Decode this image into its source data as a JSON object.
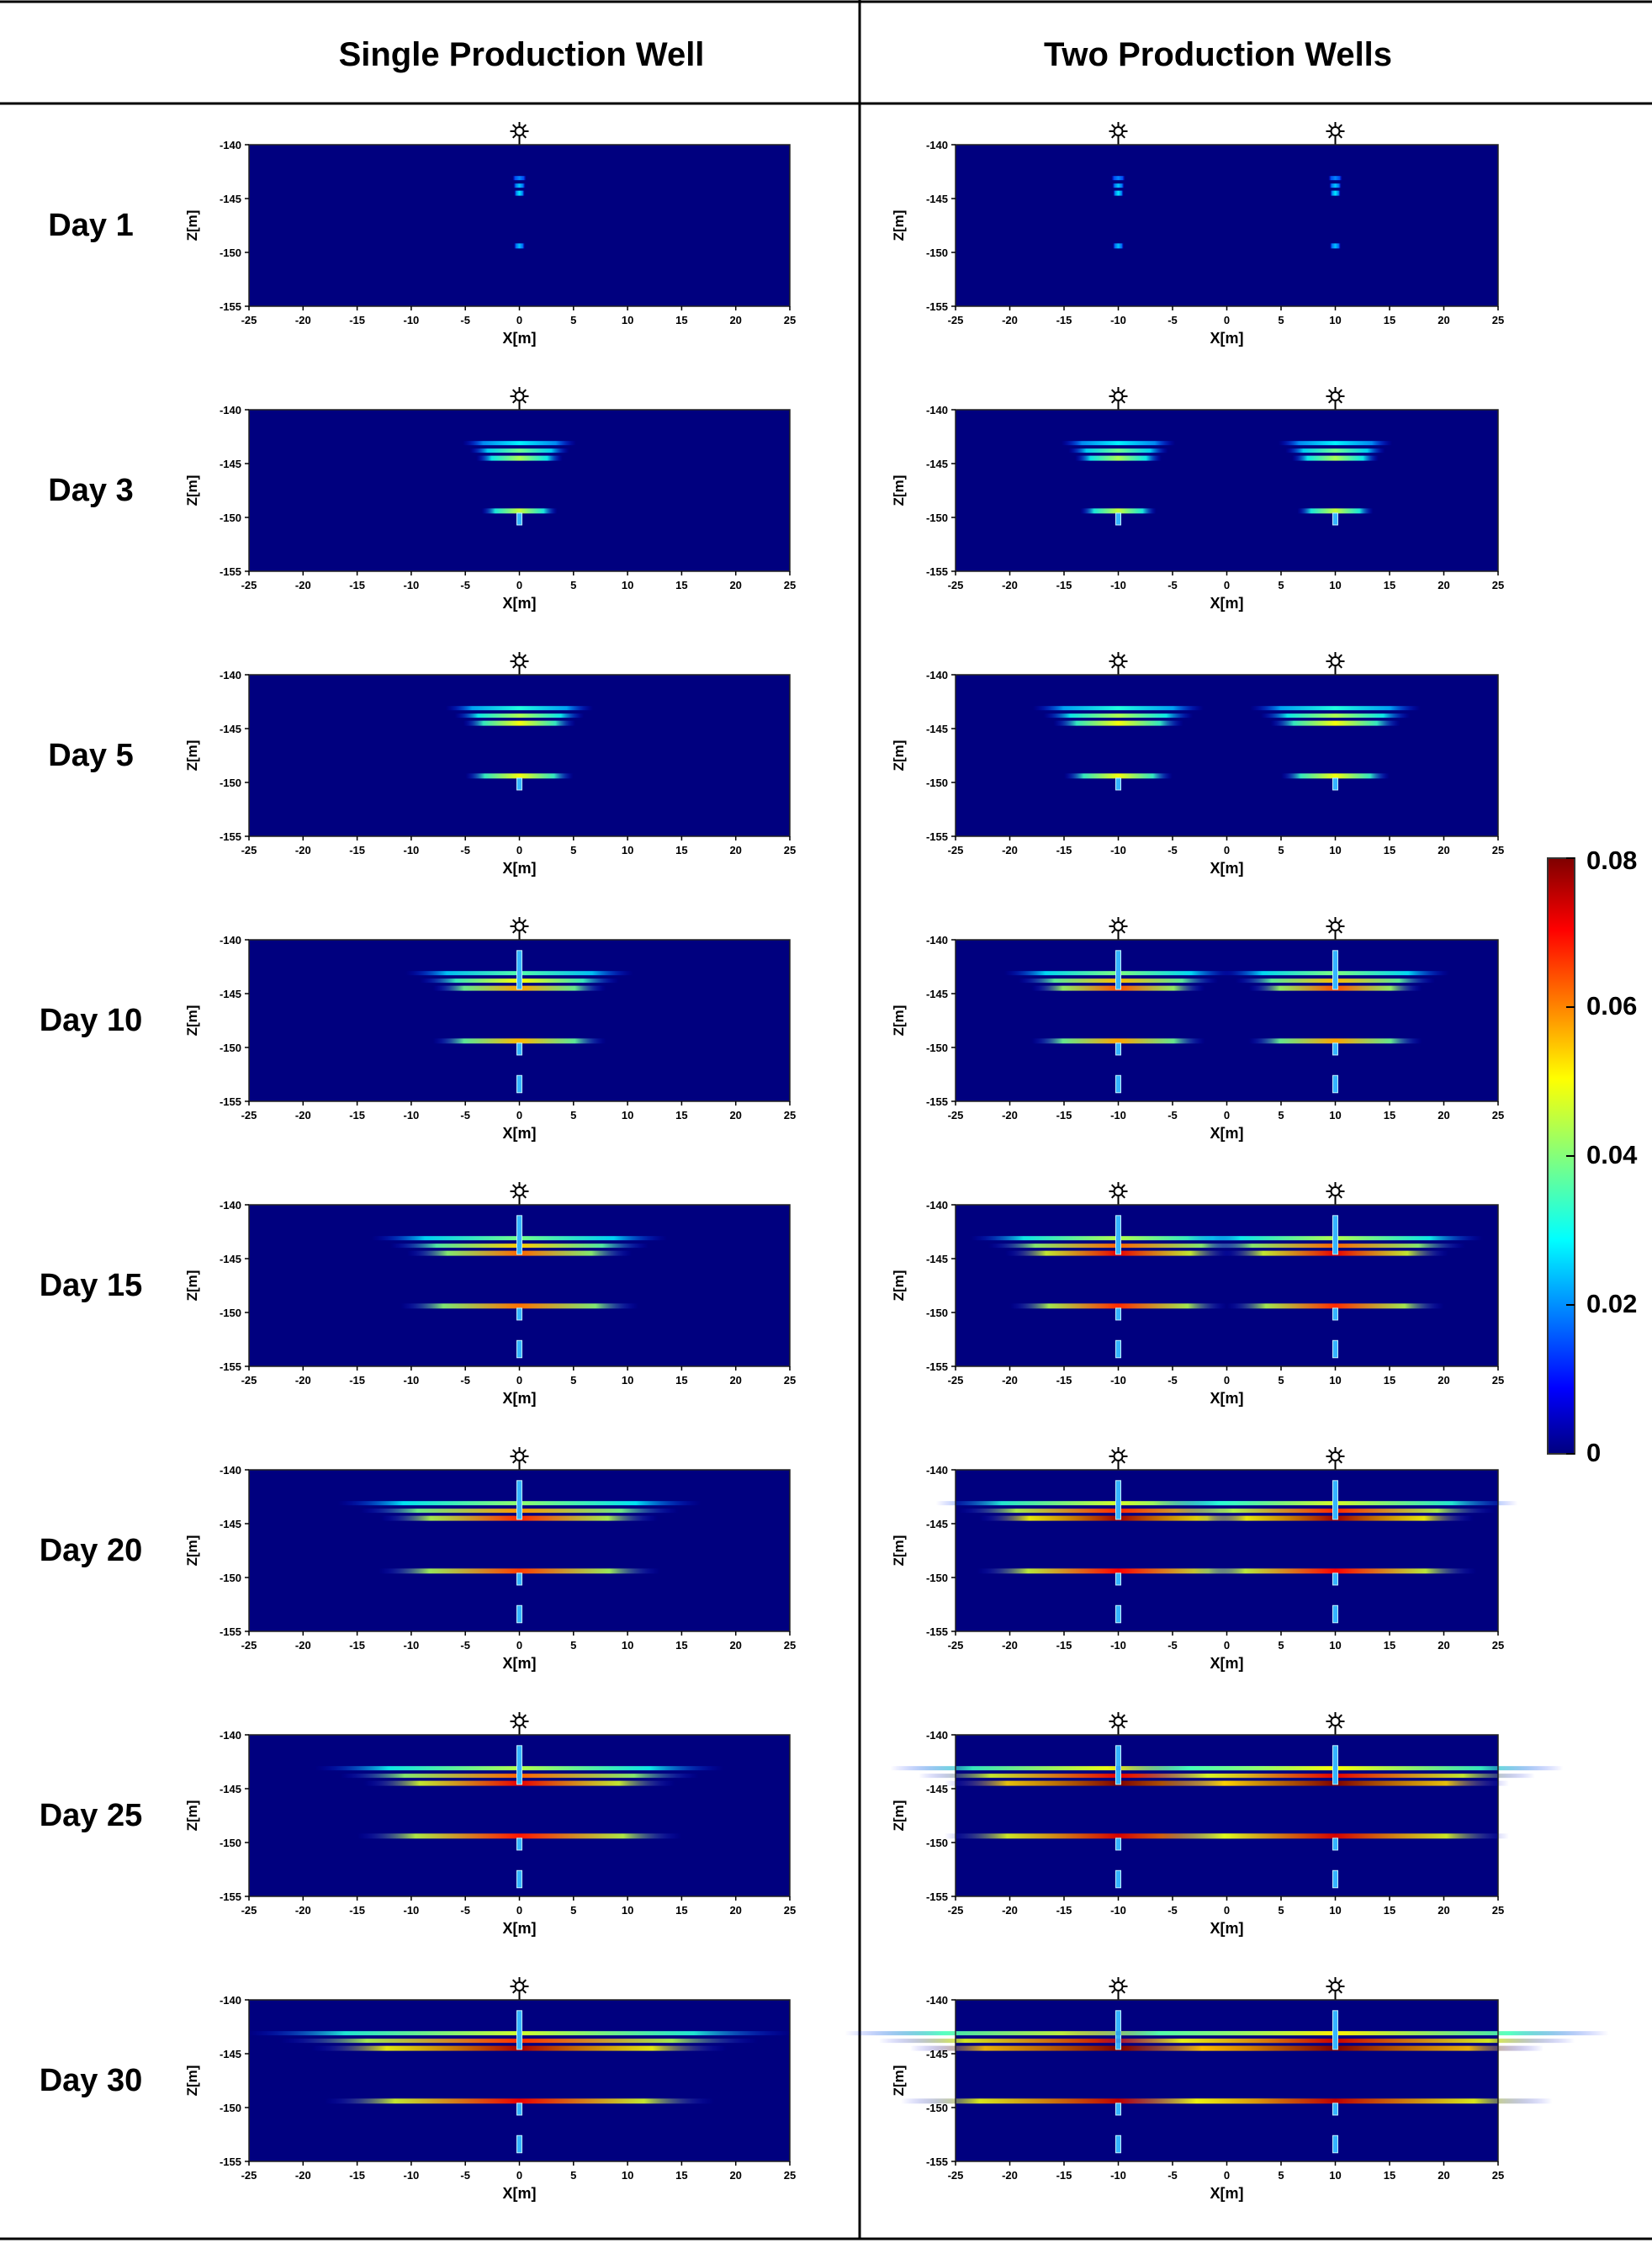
{
  "columns": {
    "left_header": "Single Production Well",
    "right_header": "Two Production Wells"
  },
  "axes": {
    "xlabel": "X[m]",
    "ylabel": "Z[m]",
    "x_ticks": [
      -25,
      -20,
      -15,
      -10,
      -5,
      0,
      5,
      10,
      15,
      20,
      25
    ],
    "y_ticks": [
      -140,
      -145,
      -150,
      -155
    ]
  },
  "colorbar": {
    "tick_labels": [
      "0.08",
      "0.06",
      "0.04",
      "0.02",
      "0"
    ],
    "ticks": [
      0.08,
      0.06,
      0.04,
      0.02,
      0
    ],
    "colormap": "jet",
    "colors": [
      "#00007f",
      "#0000ff",
      "#00ffff",
      "#ffff00",
      "#ff0000",
      "#7f0000"
    ]
  },
  "chart_data": {
    "type": "heatmap",
    "title": "",
    "xlabel": "X[m]",
    "ylabel": "Z[m]",
    "xlim": [
      -25,
      25
    ],
    "ylim": [
      -155,
      -140
    ],
    "value_range": [
      0,
      0.08
    ],
    "well_icon": "sun-icon",
    "panel_rows": [
      {
        "label": "Day 1",
        "single": {
          "wells": [
            0
          ],
          "upper_halfwidth": 0.6,
          "upper_intensity": 0.22,
          "lower_halfwidth": 0.5,
          "lower_intensity": 0.18,
          "upper_shaft": 0,
          "lower_shaft": 0,
          "bottom_shaft": 0
        },
        "two": {
          "wells": [
            -10,
            10
          ],
          "upper_halfwidth": 0.6,
          "upper_intensity": 0.22,
          "lower_halfwidth": 0.5,
          "lower_intensity": 0.18,
          "upper_shaft": 0,
          "lower_shaft": 0,
          "bottom_shaft": 0
        }
      },
      {
        "label": "Day 3",
        "single": {
          "wells": [
            0
          ],
          "upper_halfwidth": 5,
          "upper_intensity": 0.42,
          "lower_halfwidth": 3.5,
          "lower_intensity": 0.45,
          "upper_shaft": 0,
          "lower_shaft": 1,
          "bottom_shaft": 0
        },
        "two": {
          "wells": [
            -10,
            10
          ],
          "upper_halfwidth": 5,
          "upper_intensity": 0.42,
          "lower_halfwidth": 3.5,
          "lower_intensity": 0.45,
          "upper_shaft": 0,
          "lower_shaft": 1,
          "bottom_shaft": 0
        }
      },
      {
        "label": "Day 5",
        "single": {
          "wells": [
            0
          ],
          "upper_halfwidth": 6.5,
          "upper_intensity": 0.5,
          "lower_halfwidth": 5,
          "lower_intensity": 0.5,
          "upper_shaft": 0,
          "lower_shaft": 1,
          "bottom_shaft": 0
        },
        "two": {
          "wells": [
            -10,
            10
          ],
          "upper_halfwidth": 7.5,
          "upper_intensity": 0.5,
          "lower_halfwidth": 5,
          "lower_intensity": 0.5,
          "upper_shaft": 0,
          "lower_shaft": 1,
          "bottom_shaft": 0
        }
      },
      {
        "label": "Day 10",
        "single": {
          "wells": [
            0
          ],
          "upper_halfwidth": 10,
          "upper_intensity": 0.6,
          "lower_halfwidth": 8,
          "lower_intensity": 0.58,
          "upper_shaft": 1,
          "lower_shaft": 1,
          "bottom_shaft": 1
        },
        "two": {
          "wells": [
            -10,
            10
          ],
          "upper_halfwidth": 10,
          "upper_intensity": 0.68,
          "lower_halfwidth": 8,
          "lower_intensity": 0.6,
          "upper_shaft": 1,
          "lower_shaft": 1,
          "bottom_shaft": 1
        }
      },
      {
        "label": "Day 15",
        "single": {
          "wells": [
            0
          ],
          "upper_halfwidth": 13,
          "upper_intensity": 0.66,
          "lower_halfwidth": 11,
          "lower_intensity": 0.65,
          "upper_shaft": 1,
          "lower_shaft": 1,
          "bottom_shaft": 1
        },
        "two": {
          "wells": [
            -10,
            10
          ],
          "upper_halfwidth": 13,
          "upper_intensity": 0.78,
          "lower_halfwidth": 10,
          "lower_intensity": 0.72,
          "upper_shaft": 1,
          "lower_shaft": 1,
          "bottom_shaft": 1
        }
      },
      {
        "label": "Day 20",
        "single": {
          "wells": [
            0
          ],
          "upper_halfwidth": 16,
          "upper_intensity": 0.72,
          "lower_halfwidth": 13,
          "lower_intensity": 0.7,
          "upper_shaft": 1,
          "lower_shaft": 1,
          "bottom_shaft": 1
        },
        "two": {
          "wells": [
            -10,
            10
          ],
          "upper_halfwidth": 16,
          "upper_intensity": 0.85,
          "lower_halfwidth": 13,
          "lower_intensity": 0.76,
          "upper_shaft": 1,
          "lower_shaft": 1,
          "bottom_shaft": 1
        }
      },
      {
        "label": "Day 25",
        "single": {
          "wells": [
            0
          ],
          "upper_halfwidth": 18,
          "upper_intensity": 0.78,
          "lower_halfwidth": 15,
          "lower_intensity": 0.74,
          "upper_shaft": 1,
          "lower_shaft": 1,
          "bottom_shaft": 1
        },
        "two": {
          "wells": [
            -10,
            10
          ],
          "upper_halfwidth": 20,
          "upper_intensity": 0.92,
          "lower_halfwidth": 16,
          "lower_intensity": 0.8,
          "upper_shaft": 1,
          "lower_shaft": 1,
          "bottom_shaft": 1
        }
      },
      {
        "label": "Day 30",
        "single": {
          "wells": [
            0
          ],
          "upper_halfwidth": 24,
          "upper_intensity": 0.84,
          "lower_halfwidth": 18,
          "lower_intensity": 0.78,
          "upper_shaft": 1,
          "lower_shaft": 1,
          "bottom_shaft": 1
        },
        "two": {
          "wells": [
            -10,
            10
          ],
          "upper_halfwidth": 24,
          "upper_intensity": 0.95,
          "lower_halfwidth": 20,
          "lower_intensity": 0.82,
          "upper_shaft": 1,
          "lower_shaft": 1,
          "bottom_shaft": 1
        }
      }
    ]
  }
}
